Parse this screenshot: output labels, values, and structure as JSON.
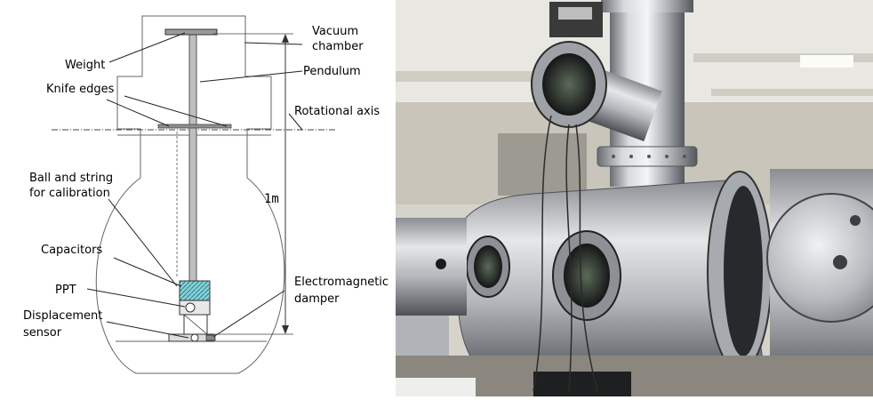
{
  "diagram": {
    "labels": {
      "vacuum_chamber_1": "Vacuum",
      "vacuum_chamber_2": "chamber",
      "weight": "Weight",
      "pendulum": "Pendulum",
      "knife_edges": "Knife edges",
      "rotational_axis": "Rotational axis",
      "ball_string_1": "Ball and string",
      "ball_string_2": "for calibration",
      "length": "1m",
      "capacitors": "Capacitors",
      "ppt": "PPT",
      "displacement_1": "Displacement",
      "displacement_2": "sensor",
      "damper_1": "Electromagnetic",
      "damper_2": "damper"
    }
  },
  "photo": {
    "subject": "vacuum chamber apparatus photograph",
    "colors": {
      "wall": "#d9d6cf",
      "steel": "#b9bcc0",
      "steel_dark": "#5e6166",
      "ceiling": "#e8e6e0"
    }
  }
}
